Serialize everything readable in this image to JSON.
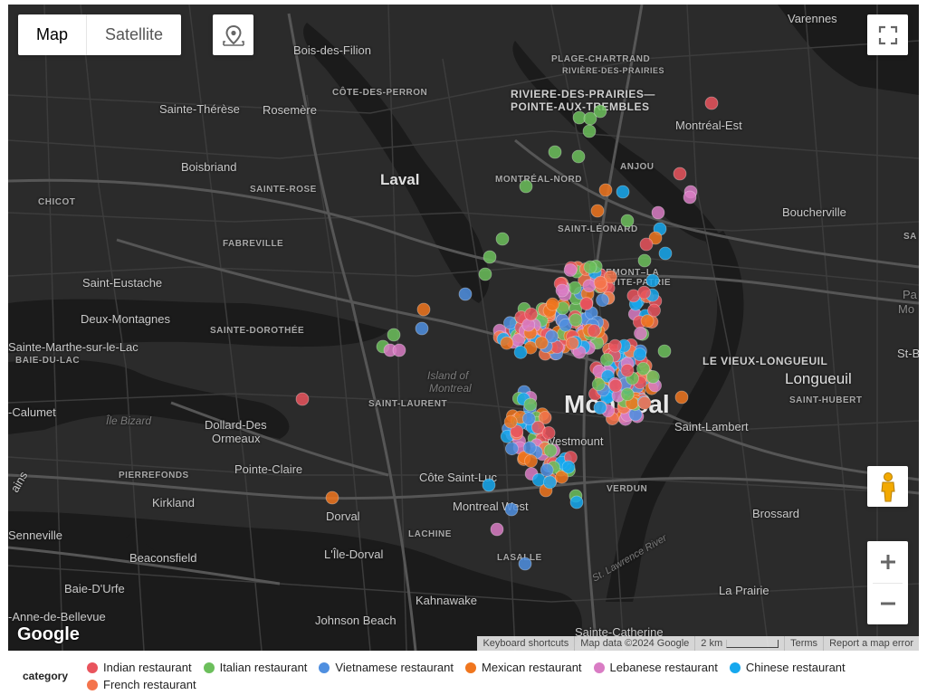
{
  "map": {
    "map_type_buttons": [
      "Map",
      "Satellite"
    ],
    "active_map_type": "Map",
    "attribution": [
      "Keyboard shortcuts",
      "Map data ©2024 Google",
      "2 km",
      "Terms",
      "Report a map error"
    ],
    "logo": "Google",
    "places": [
      {
        "id": "varennes",
        "label": "Varennes"
      },
      {
        "id": "bois-des-filion",
        "label": "Bois-des-Filion"
      },
      {
        "id": "plage-chartrand",
        "label": "PLAGE-CHARTRAND"
      },
      {
        "id": "rdp-sub",
        "label": "RIVIÈRE-DES-PRAIRIES"
      },
      {
        "id": "rdp-pat",
        "label": "RIVIERE-DES-PRAIRIES—"
      },
      {
        "id": "rdp-pat2",
        "label": "POINTE-AUX-TREMBLES"
      },
      {
        "id": "cote-des-perron",
        "label": "CÔTE-DES-PERRON"
      },
      {
        "id": "sainte-therese",
        "label": "Sainte-Thérèse"
      },
      {
        "id": "rosemere",
        "label": "Rosemère"
      },
      {
        "id": "montreal-est",
        "label": "Montréal-Est"
      },
      {
        "id": "boisbriand",
        "label": "Boisbriand"
      },
      {
        "id": "laval",
        "label": "Laval"
      },
      {
        "id": "montreal-nord",
        "label": "MONTRÉAL-NORD"
      },
      {
        "id": "anjou",
        "label": "ANJOU"
      },
      {
        "id": "sainte-rose",
        "label": "SAINTE-ROSE"
      },
      {
        "id": "chicot",
        "label": "CHICOT"
      },
      {
        "id": "saint-leonard",
        "label": "SAINT-LÉONARD"
      },
      {
        "id": "boucherville",
        "label": "Boucherville"
      },
      {
        "id": "fabreville",
        "label": "FABREVILLE"
      },
      {
        "id": "sa",
        "label": "SA"
      },
      {
        "id": "saint-eustache",
        "label": "Saint-Eustache"
      },
      {
        "id": "rosemont",
        "label": "ROSEMONT–LA"
      },
      {
        "id": "petite-patrie",
        "label": "PETITE-PATRIE"
      },
      {
        "id": "deux-montagnes",
        "label": "Deux-Montagnes"
      },
      {
        "id": "sainte-dorothee",
        "label": "SAINTE-DOROTHÉE"
      },
      {
        "id": "pa",
        "label": "Pa"
      },
      {
        "id": "mo",
        "label": "Mo"
      },
      {
        "id": "sainte-marthe",
        "label": "Sainte-Marthe-sur-le-Lac"
      },
      {
        "id": "baie-du-lac",
        "label": "BAIE-DU-LAC"
      },
      {
        "id": "le-vieux-longueuil",
        "label": "LE VIEUX-LONGUEUIL"
      },
      {
        "id": "st-b",
        "label": "St-B"
      },
      {
        "id": "longueuil",
        "label": "Longueuil"
      },
      {
        "id": "island-of-montreal",
        "label": "Island of"
      },
      {
        "id": "island-of-montreal-2",
        "label": "Montreal"
      },
      {
        "id": "saint-laurent",
        "label": "SAINT-LAURENT"
      },
      {
        "id": "montreal",
        "label": "Montréal"
      },
      {
        "id": "saint-hubert",
        "label": "SAINT-HUBERT"
      },
      {
        "id": "calumet",
        "label": "-Calumet"
      },
      {
        "id": "ile-bizard",
        "label": "Île Bizard"
      },
      {
        "id": "dollard",
        "label": "Dollard-Des"
      },
      {
        "id": "dollard-2",
        "label": "Ormeaux"
      },
      {
        "id": "saint-lambert",
        "label": "Saint-Lambert"
      },
      {
        "id": "westmount",
        "label": "Westmount"
      },
      {
        "id": "pierrefonds",
        "label": "PIERREFONDS"
      },
      {
        "id": "pointe-claire",
        "label": "Pointe-Claire"
      },
      {
        "id": "cote-saint-luc",
        "label": "Côte Saint-Luc"
      },
      {
        "id": "verdun",
        "label": "VERDUN"
      },
      {
        "id": "kirkland",
        "label": "Kirkland"
      },
      {
        "id": "montreal-west",
        "label": "Montreal West"
      },
      {
        "id": "brossard",
        "label": "Brossard"
      },
      {
        "id": "dorval",
        "label": "Dorval"
      },
      {
        "id": "senneville",
        "label": "Senneville"
      },
      {
        "id": "lachine",
        "label": "LACHINE"
      },
      {
        "id": "l-ile-dorval",
        "label": "L'Île-Dorval"
      },
      {
        "id": "beaconsfield",
        "label": "Beaconsfield"
      },
      {
        "id": "lasalle",
        "label": "LASALLE"
      },
      {
        "id": "st-lawrence",
        "label": "St. Lawrence River"
      },
      {
        "id": "baie-d-urfe",
        "label": "Baie-D'Urfe"
      },
      {
        "id": "la-prairie",
        "label": "La Prairie"
      },
      {
        "id": "kahnawake",
        "label": "Kahnawake"
      },
      {
        "id": "sainte-anne",
        "label": "-Anne-de-Bellevue"
      },
      {
        "id": "johnson-beach",
        "label": "Johnson Beach"
      },
      {
        "id": "sainte-catherine",
        "label": "Sainte-Catherine"
      },
      {
        "id": "ains",
        "label": "ains"
      }
    ]
  },
  "legend": {
    "title": "category",
    "items": [
      {
        "label": "Indian restaurant",
        "color": "#e9545d"
      },
      {
        "label": "Italian restaurant",
        "color": "#6cbf5c"
      },
      {
        "label": "Vietnamese restaurant",
        "color": "#4f8fe0"
      },
      {
        "label": "Mexican restaurant",
        "color": "#f0761e"
      },
      {
        "label": "Lebanese restaurant",
        "color": "#d97cc4"
      },
      {
        "label": "Chinese restaurant",
        "color": "#16a8ee"
      },
      {
        "label": "French restaurant",
        "color": "#f4744c"
      }
    ]
  },
  "colors": {
    "map_bg": "#2b2b2b",
    "water": "#1b1b1b",
    "road": "#454545",
    "highway": "#5a5a5a"
  }
}
